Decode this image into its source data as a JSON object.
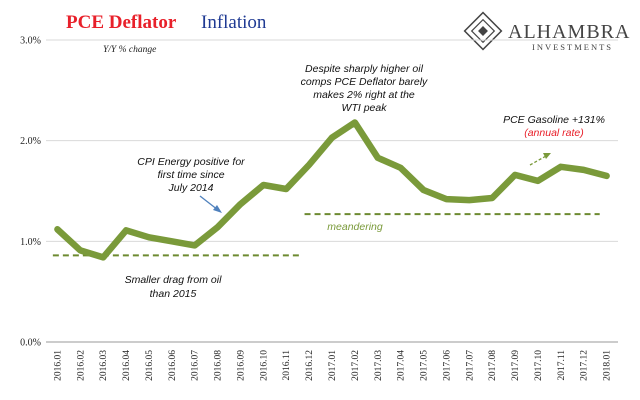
{
  "header": {
    "title_part1": "PCE Deflator",
    "title_part2": "Inflation",
    "subtitle": "Y/Y % change"
  },
  "logo": {
    "name": "ALHAMBRA",
    "tagline": "INVESTMENTS"
  },
  "annotations": {
    "peak_line1": "Despite sharply higher oil",
    "peak_line2": "comps PCE Deflator barely",
    "peak_line3": "makes 2% right at the",
    "peak_line4": "WTI peak",
    "cpi_line1": "CPI Energy positive for",
    "cpi_line2": "first time since",
    "cpi_line3": "July 2014",
    "meandering": "meandering",
    "drag_line1": "Smaller drag from oil",
    "drag_line2": "than 2015",
    "gasoline": "PCE Gasoline +131%",
    "annual_rate": "(annual rate)"
  },
  "colors": {
    "series": "#7a9a3a",
    "dash": "#6d8a30",
    "title_red": "#e8202a",
    "title_blue": "#1f3a93",
    "grid": "#d9d9d9"
  },
  "chart_data": {
    "type": "line",
    "title": "PCE Deflator Inflation",
    "subtitle": "Y/Y % change",
    "categories": [
      "2016.01",
      "2016.02",
      "2016.03",
      "2016.04",
      "2016.05",
      "2016.06",
      "2016.07",
      "2016.08",
      "2016.09",
      "2016.10",
      "2016.11",
      "2016.12",
      "2017.01",
      "2017.02",
      "2017.03",
      "2017.04",
      "2017.05",
      "2017.06",
      "2017.07",
      "2017.08",
      "2017.09",
      "2017.10",
      "2017.11",
      "2017.12",
      "2018.01"
    ],
    "series": [
      {
        "values": [
          1.12,
          0.91,
          0.84,
          1.11,
          1.04,
          1.0,
          0.96,
          1.14,
          1.37,
          1.56,
          1.52,
          1.76,
          2.03,
          2.18,
          1.83,
          1.73,
          1.51,
          1.42,
          1.41,
          1.43,
          1.66,
          1.6,
          1.74,
          1.71,
          1.65
        ]
      }
    ],
    "yticks": [
      "0.0%",
      "1.0%",
      "2.0%",
      "3.0%"
    ],
    "ylim": [
      0,
      3
    ],
    "grid": "horizontal",
    "reference_lines": [
      {
        "value": 0.86,
        "from": "2016.01",
        "to": "2016.12"
      },
      {
        "value": 1.27,
        "from": "2016.12",
        "to": "2018.01"
      }
    ]
  }
}
